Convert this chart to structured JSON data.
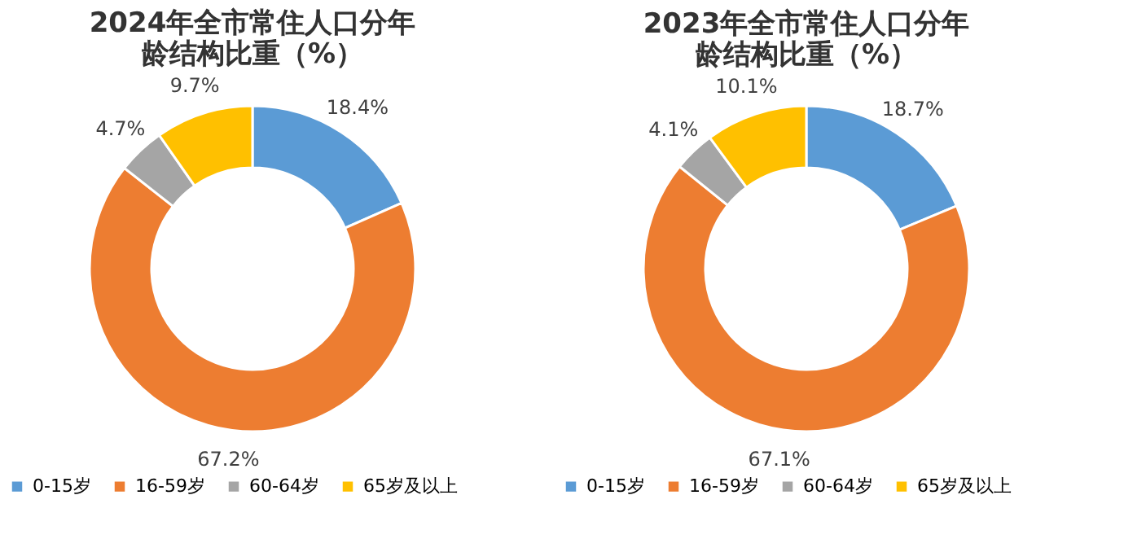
{
  "chart_data": [
    {
      "type": "donut",
      "title": "2024年全市常住人口分年龄结构比重（%）",
      "categories": [
        "0-15岁",
        "16-59岁",
        "60-64岁",
        "65岁及以上"
      ],
      "values": [
        18.4,
        67.2,
        4.7,
        9.7
      ],
      "colors": [
        "#5b9bd5",
        "#ed7d31",
        "#a5a5a5",
        "#ffc000"
      ],
      "value_labels": [
        "18.4%",
        "67.2%",
        "4.7%",
        "9.7%"
      ],
      "legend": "bottom"
    },
    {
      "type": "donut",
      "title": "2023年全市常住人口分年龄结构比重（%）",
      "categories": [
        "0-15岁",
        "16-59岁",
        "60-64岁",
        "65岁及以上"
      ],
      "values": [
        18.7,
        67.1,
        4.1,
        10.1
      ],
      "colors": [
        "#5b9bd5",
        "#ed7d31",
        "#a5a5a5",
        "#ffc000"
      ],
      "value_labels": [
        "18.7%",
        "67.1%",
        "4.1%",
        "10.1%"
      ],
      "legend": "bottom"
    }
  ]
}
